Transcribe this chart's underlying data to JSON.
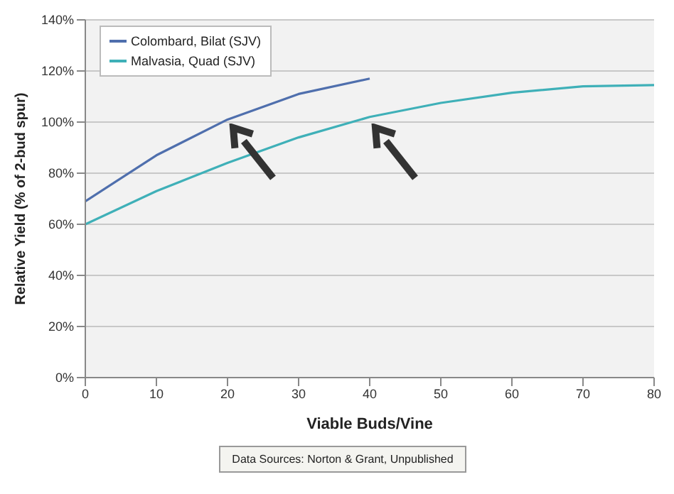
{
  "chart_data": {
    "type": "line",
    "xlabel": "Viable Buds/Vine",
    "ylabel": "Relative Yield (% of 2-bud spur)",
    "series": [
      {
        "name": "Colombard, Bilat (SJV)",
        "color": "#4f6fad",
        "x": [
          0,
          10,
          20,
          30,
          40
        ],
        "values": [
          69,
          87,
          101,
          111,
          117
        ]
      },
      {
        "name": "Malvasia, Quad (SJV)",
        "color": "#3fb0b8",
        "x": [
          0,
          10,
          20,
          30,
          40,
          50,
          60,
          70,
          80
        ],
        "values": [
          60,
          73,
          84,
          94,
          102,
          107.5,
          111.5,
          114,
          114.5
        ]
      }
    ],
    "xlim": [
      0,
      80
    ],
    "xticks": [
      0,
      10,
      20,
      30,
      40,
      50,
      60,
      70,
      80
    ],
    "ylim": [
      0,
      140
    ],
    "yticks": [
      {
        "value": 0,
        "label": "0%"
      },
      {
        "value": 20,
        "label": "20%"
      },
      {
        "value": 40,
        "label": "40%"
      },
      {
        "value": 60,
        "label": "60%"
      },
      {
        "value": 80,
        "label": "80%"
      },
      {
        "value": 100,
        "label": "100%"
      },
      {
        "value": 120,
        "label": "120%"
      },
      {
        "value": 140,
        "label": "140%"
      }
    ],
    "grid": "y",
    "legend": "top left",
    "marker": "none",
    "line_style": "solid",
    "annotations": [
      "Data Sources: Norton & Grant, Unpublished"
    ]
  }
}
